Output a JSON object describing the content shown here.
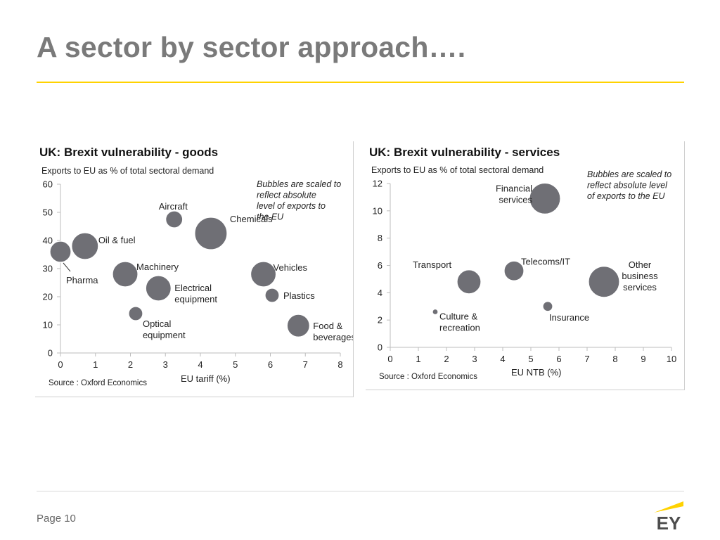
{
  "slide": {
    "title": "A sector by sector approach….",
    "page_label": "Page 10",
    "logo_text": "EY"
  },
  "colors": {
    "accent": "#ffd200",
    "bubble": "#6f6f75",
    "bubble_stroke": "#ffffff",
    "title": "#7a7a7a",
    "axis": "#bdbdbd"
  },
  "chart_data": [
    {
      "type": "scatter",
      "bubble": true,
      "title": "UK: Brexit vulnerability - goods",
      "ylabel": "Exports to EU as % of total sectoral demand",
      "xlabel": "EU tariff (%)",
      "note": "Bubbles are scaled to reflect absolute level of exports to the EU",
      "source": "Source : Oxford Economics",
      "xlim": [
        0,
        8
      ],
      "ylim": [
        0,
        60
      ],
      "xticks": [
        0,
        1,
        2,
        3,
        4,
        5,
        6,
        7,
        8
      ],
      "yticks": [
        0,
        10,
        20,
        30,
        40,
        50,
        60
      ],
      "grid": false,
      "points": [
        {
          "name": "Pharma",
          "x": 0,
          "y": 36,
          "size": 15
        },
        {
          "name": "Oil & fuel",
          "x": 0.7,
          "y": 38,
          "size": 19
        },
        {
          "name": "Aircraft",
          "x": 3.25,
          "y": 47.5,
          "size": 12
        },
        {
          "name": "Chemicals",
          "x": 4.3,
          "y": 42.5,
          "size": 23
        },
        {
          "name": "Machinery",
          "x": 1.85,
          "y": 28,
          "size": 18
        },
        {
          "name": "Electrical equipment",
          "x": 2.8,
          "y": 23,
          "size": 18
        },
        {
          "name": "Optical equipment",
          "x": 2.15,
          "y": 14,
          "size": 10
        },
        {
          "name": "Vehicles",
          "x": 5.8,
          "y": 28,
          "size": 18
        },
        {
          "name": "Plastics",
          "x": 6.05,
          "y": 20.5,
          "size": 10
        },
        {
          "name": "Food & beverages",
          "x": 6.8,
          "y": 9.7,
          "size": 16
        }
      ]
    },
    {
      "type": "scatter",
      "bubble": true,
      "title": "UK: Brexit vulnerability - services",
      "ylabel": "Exports to EU as % of total sectoral demand",
      "xlabel": "EU NTB (%)",
      "note": "Bubbles are scaled to reflect absolute level of exports to the EU",
      "source": "Source : Oxford Economics",
      "xlim": [
        0,
        10
      ],
      "ylim": [
        0,
        12
      ],
      "xticks": [
        0,
        1,
        2,
        3,
        4,
        5,
        6,
        7,
        8,
        9,
        10
      ],
      "yticks": [
        0,
        2,
        4,
        6,
        8,
        10,
        12
      ],
      "grid": false,
      "points": [
        {
          "name": "Financial services",
          "x": 5.5,
          "y": 10.9,
          "size": 22
        },
        {
          "name": "Transport",
          "x": 2.8,
          "y": 4.8,
          "size": 17
        },
        {
          "name": "Telecoms/IT",
          "x": 4.4,
          "y": 5.6,
          "size": 14
        },
        {
          "name": "Other business services",
          "x": 7.6,
          "y": 4.8,
          "size": 22
        },
        {
          "name": "Culture & recreation",
          "x": 1.6,
          "y": 2.6,
          "size": 4
        },
        {
          "name": "Insurance",
          "x": 5.6,
          "y": 3.0,
          "size": 7
        }
      ]
    }
  ]
}
